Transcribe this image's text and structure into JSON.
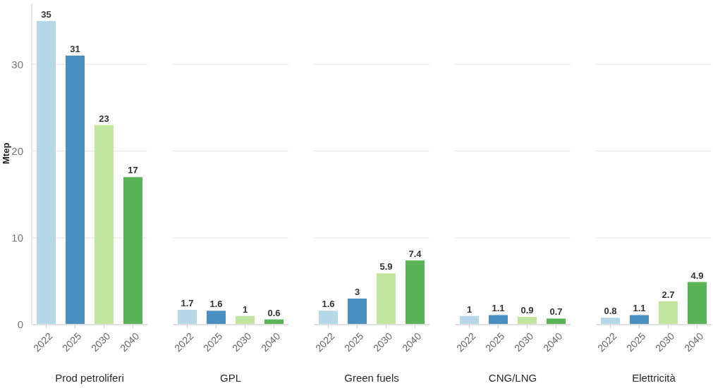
{
  "chart_data": [
    {
      "type": "bar",
      "categories": [
        "2022",
        "2025",
        "2030",
        "2040"
      ],
      "values": [
        35,
        31,
        23,
        17
      ],
      "colors": [
        "#b5d7e8",
        "#4a8fc1",
        "#c2e59f",
        "#5ab357"
      ],
      "xlabel": "Prod petroliferi",
      "ylabel": "Mtep",
      "ylim": [
        0,
        37
      ],
      "yticks": [
        0,
        10,
        20,
        30
      ],
      "grid": "y",
      "data_labels": true
    },
    {
      "type": "bar",
      "categories": [
        "2022",
        "2025",
        "2030",
        "2040"
      ],
      "values": [
        1.7,
        1.6,
        1,
        0.6
      ],
      "colors": [
        "#b5d7e8",
        "#4a8fc1",
        "#c2e59f",
        "#5ab357"
      ],
      "xlabel": "GPL",
      "ylim": [
        0,
        30
      ],
      "yticks": [
        0,
        10,
        20,
        30
      ],
      "grid": "y",
      "data_labels": true,
      "tick_labels": "x"
    },
    {
      "type": "bar",
      "categories": [
        "2022",
        "2025",
        "2030",
        "2040"
      ],
      "values": [
        1.6,
        3,
        5.9,
        7.4
      ],
      "colors": [
        "#b5d7e8",
        "#4a8fc1",
        "#c2e59f",
        "#5ab357"
      ],
      "xlabel": "Green fuels",
      "ylim": [
        0,
        30
      ],
      "yticks": [
        0,
        10,
        20,
        30
      ],
      "grid": "y",
      "data_labels": true,
      "tick_labels": "x"
    },
    {
      "type": "bar",
      "categories": [
        "2022",
        "2025",
        "2030",
        "2040"
      ],
      "values": [
        1,
        1.1,
        0.9,
        0.7
      ],
      "colors": [
        "#b5d7e8",
        "#4a8fc1",
        "#c2e59f",
        "#5ab357"
      ],
      "xlabel": "CNG/LNG",
      "ylim": [
        0,
        30
      ],
      "yticks": [
        0,
        10,
        20,
        30
      ],
      "grid": "y",
      "data_labels": true,
      "tick_labels": "x"
    },
    {
      "type": "bar",
      "categories": [
        "2022",
        "2025",
        "2030",
        "2040"
      ],
      "values": [
        0.8,
        1.1,
        2.7,
        4.9
      ],
      "colors": [
        "#b5d7e8",
        "#4a8fc1",
        "#c2e59f",
        "#5ab357"
      ],
      "xlabel": "Elettricità",
      "ylim": [
        0,
        30
      ],
      "yticks": [
        0,
        10,
        20,
        30
      ],
      "grid": "y",
      "data_labels": true,
      "tick_labels": "x"
    }
  ]
}
